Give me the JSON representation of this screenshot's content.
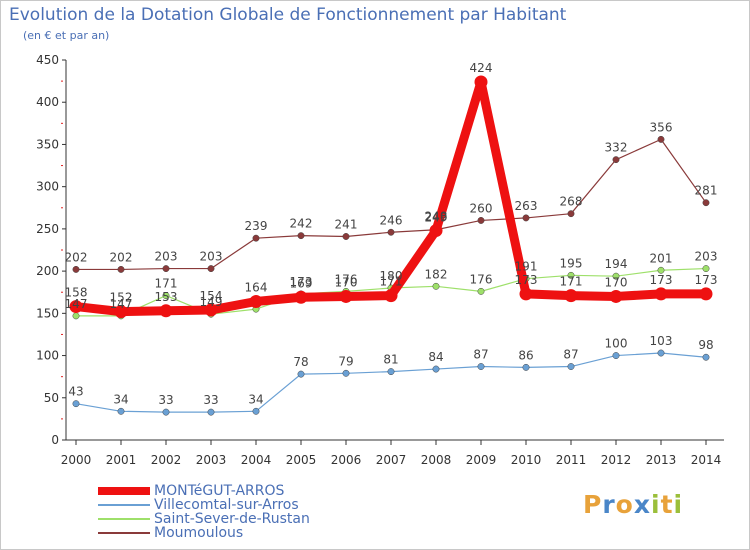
{
  "header": {
    "title": "Evolution de la Dotation Globale de Fonctionnement par Habitant",
    "subtitle": "(en € et par an)"
  },
  "logo": {
    "letters": [
      "P",
      "r",
      "o",
      "x",
      "i",
      "t",
      "i"
    ],
    "colors": [
      "#e8a23a",
      "#4a86c8",
      "#e8a23a",
      "#4a86c8",
      "#9bbf3a",
      "#e8a23a",
      "#9bbf3a"
    ]
  },
  "chart_data": {
    "type": "line",
    "title": "Evolution de la Dotation Globale de Fonctionnement par Habitant",
    "subtitle": "(en € et par an)",
    "xlabel": "",
    "ylabel": "",
    "x": [
      "2000",
      "2001",
      "2002",
      "2003",
      "2004",
      "2005",
      "2006",
      "2007",
      "2008",
      "2009",
      "2010",
      "2011",
      "2012",
      "2013",
      "2014"
    ],
    "ylim": [
      0,
      450
    ],
    "yticks": [
      "0",
      "50",
      "100",
      "150",
      "200",
      "250",
      "300",
      "350",
      "400",
      "450"
    ],
    "grid": false,
    "legend_position": "bottom-left",
    "series": [
      {
        "name": "MONTéGUT-ARROS",
        "color": "#ee1111",
        "emphasis": true,
        "values": [
          158,
          152,
          153,
          154,
          164,
          169,
          170,
          171,
          248,
          424,
          173,
          171,
          170,
          173,
          173
        ],
        "labels": [
          "158",
          "152",
          "153",
          "154",
          "164",
          "169",
          "170",
          "171",
          "248",
          "424",
          "173",
          "171",
          "170",
          "173",
          "173"
        ]
      },
      {
        "name": "Villecomtal-sur-Arros",
        "color": "#6aa0d4",
        "emphasis": false,
        "values": [
          43,
          34,
          33,
          33,
          34,
          78,
          79,
          81,
          84,
          87,
          86,
          87,
          100,
          103,
          98
        ],
        "labels": [
          "43",
          "34",
          "33",
          "33",
          "34",
          "78",
          "79",
          "81",
          "84",
          "87",
          "86",
          "87",
          "100",
          "103",
          "98"
        ]
      },
      {
        "name": "Saint-Sever-de-Rustan",
        "color": "#9ee06a",
        "emphasis": false,
        "values": [
          147,
          147,
          171,
          149,
          155,
          173,
          176,
          180,
          182,
          176,
          191,
          195,
          194,
          201,
          203
        ],
        "labels": [
          "147",
          "147",
          "171",
          "149",
          "",
          "173",
          "176",
          "180",
          "182",
          "176",
          "191",
          "195",
          "194",
          "201",
          "203"
        ]
      },
      {
        "name": "Moumoulous",
        "color": "#8a3a3a",
        "emphasis": false,
        "values": [
          202,
          202,
          203,
          203,
          239,
          242,
          241,
          246,
          249,
          260,
          263,
          268,
          332,
          356,
          281
        ],
        "labels": [
          "202",
          "202",
          "203",
          "203",
          "239",
          "242",
          "241",
          "246",
          "249",
          "260",
          "263",
          "268",
          "332",
          "356",
          "281"
        ]
      }
    ]
  }
}
